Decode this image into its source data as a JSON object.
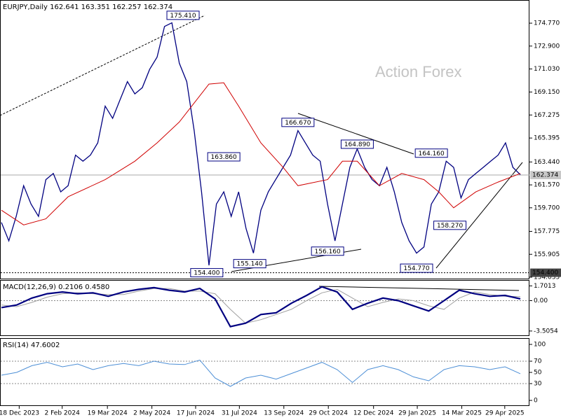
{
  "chart_data": [
    {
      "type": "line",
      "title": "EURJPY,Daily 162.641 163.351 162.257 162.374",
      "watermark": "Action Forex",
      "color": "#000080",
      "ma_color": "#d00000",
      "values": [
        158.5,
        157,
        159,
        161.5,
        160,
        159,
        162,
        162.5,
        161,
        161.5,
        164,
        163.5,
        164,
        165,
        168,
        167,
        168.5,
        170,
        169,
        169.5,
        171,
        172,
        174.5,
        174.8,
        171.5,
        170,
        166,
        161,
        155,
        160,
        161,
        159,
        161,
        158,
        156,
        159.5,
        161,
        162,
        163,
        164,
        166,
        165,
        164,
        163.5,
        160,
        157,
        160,
        163,
        164.5,
        163,
        162,
        161.5,
        163,
        161,
        158.5,
        157,
        156,
        156.5,
        160,
        161,
        163.5,
        163,
        160.5,
        162,
        162.5,
        163,
        163.5,
        164,
        165,
        163,
        162.4
      ],
      "ma_x": [
        0,
        3,
        6,
        9,
        14,
        18,
        21,
        24,
        28,
        30,
        32,
        35,
        38,
        40,
        44,
        46,
        48,
        51,
        54,
        57,
        59,
        61,
        64,
        67,
        70
      ],
      "ma_values": [
        159.5,
        158.3,
        158.8,
        160.6,
        162,
        163.5,
        165,
        166.7,
        169.8,
        169.9,
        168,
        165,
        163,
        161.5,
        162,
        163.5,
        163.5,
        161.5,
        162.5,
        162,
        161,
        159.7,
        161,
        161.8,
        162.5
      ],
      "xlim": [
        0,
        70
      ],
      "ylim": [
        153.92,
        176.66
      ],
      "yticks": [
        {
          "value": 174.77,
          "label": "174.770"
        },
        {
          "value": 172.9,
          "label": "172.900"
        },
        {
          "value": 171.03,
          "label": "171.030"
        },
        {
          "value": 169.15,
          "label": "169.150"
        },
        167.275,
        165.395,
        {
          "value": 163.44,
          "label": "163.440"
        },
        {
          "value": 161.57,
          "label": "161.570"
        },
        {
          "value": 159.7,
          "label": "159.700"
        },
        157.775,
        155.905,
        154.035
      ],
      "xticks": [
        {
          "value": 2.4,
          "label": "18 Dec 2023"
        },
        {
          "value": 8.2,
          "label": "2 Feb 2024"
        },
        {
          "value": 14.3,
          "label": "19 Mar 2024"
        },
        {
          "value": 20.3,
          "label": "2 May 2024"
        },
        {
          "value": 26.2,
          "label": "17 Jun 2024"
        },
        {
          "value": 32.1,
          "label": "31 Jul 2024"
        },
        {
          "value": 38.1,
          "label": "13 Sep 2024"
        },
        {
          "value": 44.1,
          "label": "29 Oct 2024"
        },
        {
          "value": 50.2,
          "label": "12 Dec 2024"
        },
        {
          "value": 56.1,
          "label": "29 Jan 2025"
        },
        {
          "value": 62.1,
          "label": "14 Mar 2025"
        },
        {
          "value": 67.9,
          "label": "29 Apr 2025"
        }
      ],
      "annotations": [
        {
          "x": 24.5,
          "value": 175.41,
          "label": "175.410"
        },
        {
          "x": 30,
          "value": 163.86,
          "label": "163.860"
        },
        {
          "x": 40,
          "value": 166.67,
          "label": "166.670"
        },
        {
          "x": 48,
          "value": 164.89,
          "label": "164.890"
        },
        {
          "x": 58,
          "value": 164.16,
          "label": "164.160"
        },
        {
          "x": 60.5,
          "value": 158.27,
          "label": "158.270"
        },
        {
          "x": 44,
          "value": 156.16,
          "label": "156.160"
        },
        {
          "x": 33.5,
          "value": 155.14,
          "label": "155.140"
        },
        {
          "x": 27.7,
          "value": 154.4,
          "label": "154.400"
        },
        {
          "x": 56,
          "value": 154.77,
          "label": "154.770"
        }
      ],
      "last_price": {
        "value": 162.374,
        "label": "162.374"
      },
      "support": {
        "value": 154.4,
        "label": "154.400"
      }
    },
    {
      "type": "macd",
      "title": "MACD(12,26,9) 0.2106 0.4580",
      "color": "#000080",
      "signal_color": "#a0a0a0",
      "values": [
        -0.8,
        -0.5,
        0.3,
        0.8,
        1.0,
        0.8,
        0.9,
        0.5,
        1.0,
        1.3,
        1.5,
        1.2,
        1.0,
        1.4,
        0.2,
        -3.0,
        -2.6,
        -1.6,
        -1.4,
        -0.3,
        0.6,
        1.6,
        1.0,
        -1.0,
        -0.3,
        0.3,
        0.0,
        -0.6,
        -1.2,
        0.0,
        1.2,
        0.8,
        0.5,
        0.6,
        0.21
      ],
      "signal": [
        -0.5,
        -0.7,
        -0.2,
        0.4,
        0.8,
        0.9,
        0.8,
        0.7,
        0.7,
        1.1,
        1.4,
        1.4,
        1.1,
        1.1,
        0.8,
        -1.0,
        -2.6,
        -2.2,
        -1.6,
        -1.0,
        0.0,
        0.9,
        1.3,
        0.3,
        -0.7,
        -0.2,
        0.2,
        0.0,
        -0.6,
        -1.0,
        0.3,
        1.0,
        0.7,
        0.5,
        0.46
      ],
      "ylim": [
        -4.0,
        2.3
      ],
      "yticks": [
        1.7013,
        {
          "value": 0,
          "label": "0.00"
        },
        -3.5054
      ],
      "levels": [
        0
      ]
    },
    {
      "type": "rsi",
      "title": "RSI(14) 47.6002",
      "color": "#4d8fd6",
      "values": [
        45,
        50,
        62,
        68,
        60,
        65,
        55,
        62,
        66,
        62,
        70,
        65,
        64,
        72,
        40,
        25,
        40,
        45,
        38,
        48,
        58,
        68,
        55,
        32,
        55,
        62,
        55,
        42,
        35,
        55,
        62,
        60,
        55,
        60,
        47.6
      ],
      "ylim": [
        -10,
        110
      ],
      "yticks": [
        100,
        70,
        50,
        30,
        0
      ],
      "levels": [
        70,
        30
      ]
    }
  ]
}
